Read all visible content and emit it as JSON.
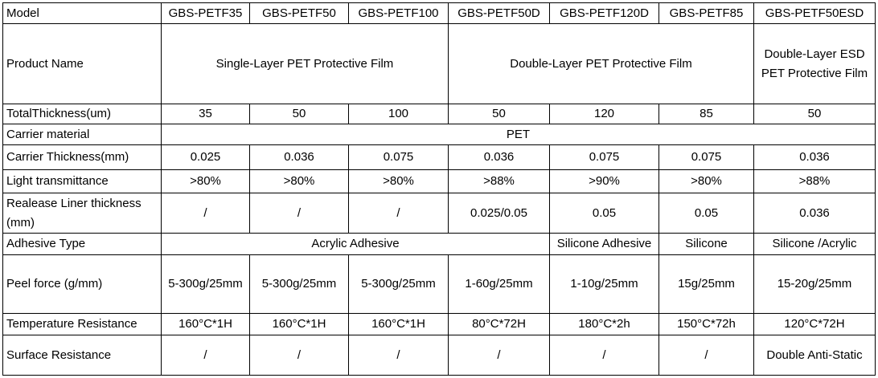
{
  "table": {
    "rows": [
      [
        "Model",
        "GBS-PETF35",
        "GBS-PETF50",
        "GBS-PETF100",
        "GBS-PETF50D",
        "GBS-PETF120D",
        "GBS-PETF85",
        "GBS-PETF50ESD"
      ],
      [
        "Product Name",
        "Single-Layer PET Protective Film",
        "Double-Layer PET Protective Film",
        "Double-Layer ESD PET Protective Film"
      ],
      [
        "TotalThickness(um)",
        "35",
        "50",
        "100",
        "50",
        "120",
        "85",
        "50"
      ],
      [
        "Carrier material",
        "PET"
      ],
      [
        "Carrier Thickness(mm)",
        "0.025",
        "0.036",
        "0.075",
        "0.036",
        "0.075",
        "0.075",
        "0.036"
      ],
      [
        "Light transmittance",
        ">80%",
        ">80%",
        ">80%",
        ">88%",
        ">90%",
        ">80%",
        ">88%"
      ],
      [
        "Realease Liner thickness (mm)",
        "/",
        "/",
        "/",
        "0.025/0.05",
        "0.05",
        "0.05",
        "0.036"
      ],
      [
        "Adhesive Type",
        "Acrylic Adhesive",
        "Silicone Adhesive",
        "Silicone",
        "Silicone /Acrylic"
      ],
      [
        "Peel force (g/mm)",
        "5-300g/25mm",
        "5-300g/25mm",
        "5-300g/25mm",
        "1-60g/25mm",
        "1-10g/25mm",
        "15g/25mm",
        "15-20g/25mm"
      ],
      [
        "Temperature Resistance",
        "160°C*1H",
        "160°C*1H",
        "160°C*1H",
        "80°C*72H",
        "180°C*2h",
        "150°C*72h",
        "120°C*72H"
      ],
      [
        "Surface Resistance",
        "/",
        "/",
        "/",
        "/",
        "/",
        "/",
        "Double Anti-Static"
      ]
    ]
  }
}
